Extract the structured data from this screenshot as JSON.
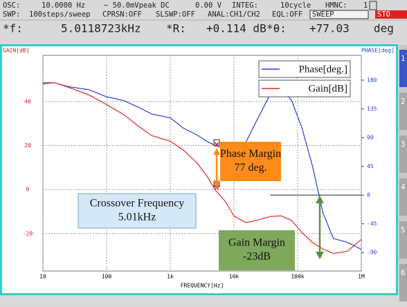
{
  "header": {
    "row1": [
      "OSC:",
      "10.0000 Hz",
      "∼ 50.0mVpeak DC",
      "0.00 V",
      "INTEG:",
      "10cycle",
      "HMNC:",
      "1"
    ],
    "row2": [
      "SWP:",
      "100steps/sweep",
      "CPRSN:OFF",
      "SLSWP:OFF",
      "ANAL:CH1/CH2",
      "EQL:OFF",
      "SWEEP"
    ],
    "stop": "STO",
    "row3": [
      "*f:",
      "5.0118723kHz",
      "*R:",
      "+0.114 dB",
      "*θ:",
      "+77.03",
      "deg"
    ]
  },
  "side_tabs": [
    "1",
    "2",
    "3",
    "4",
    "5",
    "6"
  ],
  "chart_data": {
    "type": "line",
    "xlabel": "FREQUENCY[Hz]",
    "ylabel": "GAIN[dB]",
    "y2label": "PHASE[deg]",
    "xscale": "log",
    "grid": true,
    "legend": "upper right",
    "x": [
      10,
      15,
      25,
      53,
      100,
      187,
      310,
      513,
      1000,
      1600,
      2650,
      3870,
      5010,
      7280,
      10000,
      15500,
      22600,
      37600,
      54900,
      80200,
      117000,
      171000,
      250000,
      364000,
      604000,
      1000000
    ],
    "xlim": [
      10,
      1000000
    ],
    "xticks": [
      {
        "value": 10,
        "label": "10"
      },
      {
        "value": 100,
        "label": "100"
      },
      {
        "value": 1000,
        "label": "1k"
      },
      {
        "value": 10000,
        "label": "10k"
      },
      {
        "value": 100000,
        "label": "100k"
      },
      {
        "value": 1000000,
        "label": "1M"
      }
    ],
    "ylim": [
      -37,
      61
    ],
    "yticks": [
      40,
      20,
      0,
      -20
    ],
    "y2lim": [
      -119,
      219
    ],
    "y2ticks": [
      180,
      135,
      90,
      45,
      0,
      -45,
      -90
    ],
    "series": [
      {
        "name": "Phase[deg.]",
        "color": "#2a3cd8",
        "axis": "y2",
        "values": [
          176,
          176,
          170,
          165,
          154,
          148,
          138,
          127,
          121,
          105,
          94,
          83.5,
          78,
          72.6,
          58.5,
          83.5,
          116,
          159,
          167,
          148.5,
          105,
          45.5,
          -28,
          -68,
          -74,
          -85
        ]
      },
      {
        "name": "Gain[dB]",
        "color": "#e0282a",
        "values": [
          48,
          48.6,
          46.5,
          43,
          38.6,
          34,
          29,
          24.5,
          22,
          18,
          12,
          5.6,
          0,
          -5.3,
          -12,
          -15,
          -14,
          -12.2,
          -11.9,
          -14,
          -19.5,
          -24,
          -27,
          -29,
          -28,
          -22.6
        ]
      }
    ],
    "annotations": [
      {
        "lines": [
          "Phase Margin",
          "77 deg."
        ],
        "color": "#ff8c1a"
      },
      {
        "lines": [
          "Crossover Frequency",
          "5.01kHz"
        ],
        "color": "#d4e8f8"
      },
      {
        "lines": [
          "Gain Margin",
          "-23dB"
        ],
        "color": "#7fa85c"
      }
    ]
  }
}
